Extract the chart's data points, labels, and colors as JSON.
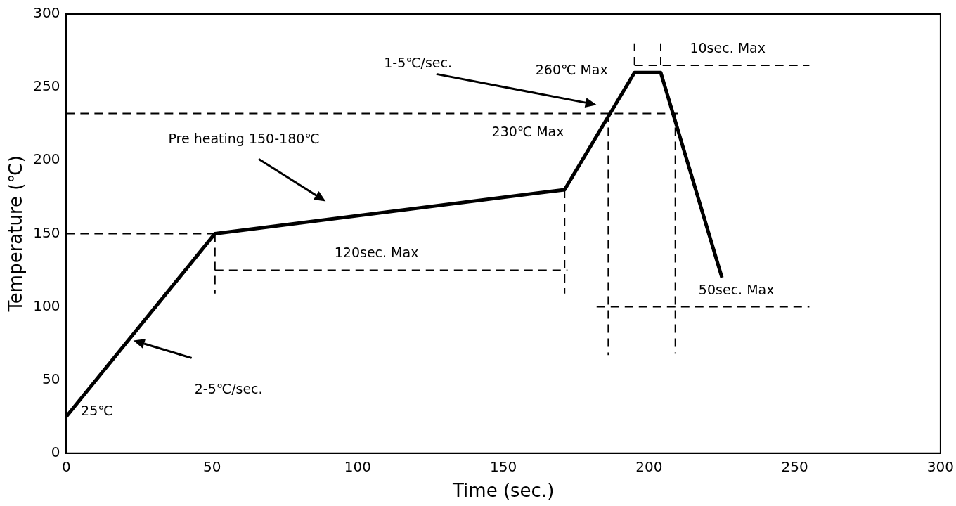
{
  "chart_data": {
    "type": "line",
    "xlabel": "Time (sec.)",
    "ylabel": "Temperature (℃)",
    "xlim": [
      0,
      300
    ],
    "xticks": [
      0,
      50,
      100,
      150,
      200,
      250,
      300
    ],
    "ylim": [
      0,
      300
    ],
    "yticks": [
      0,
      50,
      100,
      150,
      200,
      250,
      300
    ],
    "grid": false,
    "legend": false,
    "marker": "none",
    "series": [
      {
        "color": "#000000",
        "line_style": "solid",
        "x": [
          0,
          51,
          171,
          195,
          204,
          225
        ],
        "values": [
          25,
          150,
          180,
          260,
          260,
          120
        ]
      },
      {
        "color": "#000000",
        "line_style": "dashed",
        "x": [
          0,
          51
        ],
        "values": [
          150,
          150
        ]
      },
      {
        "color": "#000000",
        "line_style": "dashed",
        "x": [
          0,
          210
        ],
        "values": [
          232,
          232
        ]
      },
      {
        "color": "#000000",
        "line_style": "dashed",
        "x": [
          195,
          255
        ],
        "values": [
          265,
          265
        ]
      },
      {
        "color": "#000000",
        "line_style": "dashed",
        "x": [
          195,
          195
        ],
        "values": [
          265,
          280
        ]
      },
      {
        "color": "#000000",
        "line_style": "dashed",
        "x": [
          204,
          204
        ],
        "values": [
          265,
          280
        ]
      },
      {
        "color": "#000000",
        "line_style": "dashed",
        "x": [
          51,
          51
        ],
        "values": [
          150,
          109
        ]
      },
      {
        "color": "#000000",
        "line_style": "dashed",
        "x": [
          171,
          171
        ],
        "values": [
          180,
          109
        ]
      },
      {
        "color": "#000000",
        "line_style": "dashed",
        "x": [
          51,
          172
        ],
        "values": [
          125,
          125
        ]
      },
      {
        "color": "#000000",
        "line_style": "dashed",
        "x": [
          186,
          186
        ],
        "values": [
          232,
          67
        ]
      },
      {
        "color": "#000000",
        "line_style": "dashed",
        "x": [
          209,
          209
        ],
        "values": [
          232,
          68
        ]
      },
      {
        "color": "#000000",
        "line_style": "dashed",
        "x": [
          182,
          255
        ],
        "values": [
          100,
          100
        ]
      }
    ],
    "annotations": [
      "25℃",
      "2-5℃/sec.",
      "Pre heating 150-180℃",
      "120sec. Max",
      "1-5℃/sec.",
      "260℃ Max",
      "230℃ Max",
      "10sec. Max",
      "50sec. Max"
    ]
  }
}
